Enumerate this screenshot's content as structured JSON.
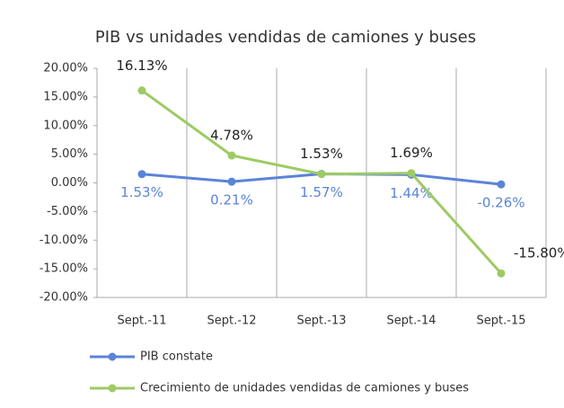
{
  "chart_data": {
    "type": "line",
    "title": "PIB vs unidades vendidas de camiones y buses",
    "categories": [
      "Sept.-11",
      "Sept.-12",
      "Sept.-13",
      "Sept.-14",
      "Sept.-15"
    ],
    "series": [
      {
        "name": "PIB constate",
        "color": "#5b84d8",
        "values": [
          1.53,
          0.21,
          1.57,
          1.44,
          -0.26
        ],
        "value_labels": [
          "1.53%",
          "0.21%",
          "1.57%",
          "1.44%",
          "-0.26%"
        ]
      },
      {
        "name": "Crecimiento de unidades vendidas de camiones y buses",
        "color": "#9dcb63",
        "values": [
          16.13,
          4.78,
          1.53,
          1.69,
          -15.8
        ],
        "value_labels": [
          "16.13%",
          "4.78%",
          "1.53%",
          "1.69%",
          "-15.80%"
        ]
      }
    ],
    "ylim": [
      -20,
      20
    ],
    "yticks": [
      {
        "value": 20,
        "label": "20.00%"
      },
      {
        "value": 15,
        "label": "15.00%"
      },
      {
        "value": 10,
        "label": "10.00%"
      },
      {
        "value": 5,
        "label": "5.00%"
      },
      {
        "value": 0,
        "label": "0.00%"
      },
      {
        "value": -5,
        "label": "-5.00%"
      },
      {
        "value": -10,
        "label": "-10.00%"
      },
      {
        "value": -15,
        "label": "-15.00%"
      },
      {
        "value": -20,
        "label": "-20.00%"
      }
    ],
    "legend": "bottom"
  }
}
